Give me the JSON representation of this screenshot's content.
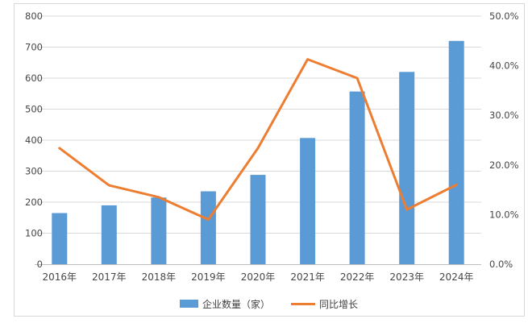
{
  "chart_data": {
    "type": "combo_bar_line",
    "title": "",
    "categories": [
      "2016年",
      "2017年",
      "2018年",
      "2019年",
      "2020年",
      "2021年",
      "2022年",
      "2023年",
      "2024年"
    ],
    "series": [
      {
        "name": "企业数量（家）",
        "type": "bar",
        "axis": "left",
        "color": "#5B9BD5",
        "values": [
          165,
          190,
          215,
          235,
          288,
          407,
          557,
          620,
          720
        ]
      },
      {
        "name": "同比增长",
        "type": "line",
        "axis": "right",
        "color": "#ED7D31",
        "values": [
          23.4,
          15.9,
          13.5,
          9.0,
          23.4,
          41.3,
          37.5,
          11.0,
          16.0
        ]
      }
    ],
    "left_axis": {
      "min": 0,
      "max": 800,
      "step": 100,
      "tick_labels": [
        "0",
        "100",
        "200",
        "300",
        "400",
        "500",
        "600",
        "700",
        "800"
      ]
    },
    "right_axis": {
      "min": 0,
      "max": 50,
      "step": 10,
      "tick_labels": [
        "0.0%",
        "10.0%",
        "20.0%",
        "30.0%",
        "40.0%",
        "50.0%"
      ]
    },
    "grid": "horizontal",
    "legend_position": "bottom"
  },
  "colors": {
    "bar": "#5B9BD5",
    "line": "#ED7D31",
    "gridline": "#D9D9D9",
    "axis_line": "#BFBFBF",
    "frame_border": "#D8D8D8",
    "tick_text": "#464646",
    "background": "#FFFFFF"
  }
}
